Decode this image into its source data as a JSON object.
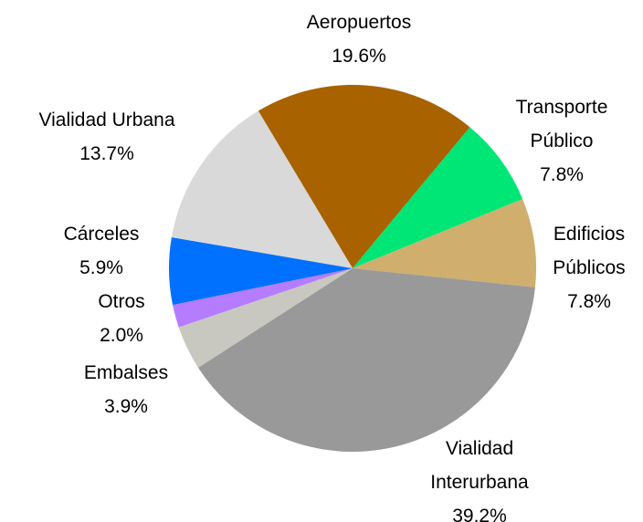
{
  "chart_data": {
    "type": "pie",
    "categories": [
      "Aeropuertos",
      "Transporte Público",
      "Edificios Públicos",
      "Vialidad Interurbana",
      "Embalses",
      "Otros",
      "Cárceles",
      "Vialidad Urbana"
    ],
    "values": [
      19.6,
      7.8,
      7.8,
      39.2,
      3.9,
      2.0,
      5.9,
      13.7
    ],
    "value_labels": [
      "19.6%",
      "7.8%",
      "7.8%",
      "39.2%",
      "3.9%",
      "2.0%",
      "5.9%",
      "13.7%"
    ],
    "colors": [
      "#a86200",
      "#00e676",
      "#d0ae6e",
      "#999999",
      "#c8c8c0",
      "#b57cff",
      "#0070ff",
      "#d9d9d9"
    ]
  }
}
